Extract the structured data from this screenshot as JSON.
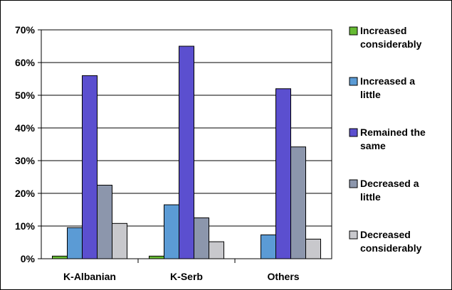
{
  "chart_data": {
    "type": "bar",
    "categories": [
      "K-Albanian",
      "K-Serb",
      "Others"
    ],
    "series": [
      {
        "name": "Increased considerably",
        "values": [
          0.8,
          0.8,
          0
        ],
        "color": "#66bb33"
      },
      {
        "name": "Increased a little",
        "values": [
          9.5,
          16.5,
          7.3
        ],
        "color": "#5b9bd5"
      },
      {
        "name": "Remained the same",
        "values": [
          56,
          65,
          52
        ],
        "color": "#5b4fcf"
      },
      {
        "name": "Decreased a little",
        "values": [
          22.5,
          12.5,
          34.2
        ],
        "color": "#8c96ac"
      },
      {
        "name": "Decreased considerably",
        "values": [
          10.8,
          5.2,
          6
        ],
        "color": "#c8c8cc"
      }
    ],
    "y_ticks": [
      "0%",
      "10%",
      "20%",
      "30%",
      "40%",
      "50%",
      "60%",
      "70%"
    ],
    "ylim": [
      0,
      70
    ],
    "grid": true,
    "legend_position": "right",
    "legend_entries": [
      [
        "Increased",
        "considerably"
      ],
      [
        "Increased a",
        "little"
      ],
      [
        "Remained the",
        "same"
      ],
      [
        "Decreased a",
        "little"
      ],
      [
        "Decreased",
        "considerably"
      ]
    ]
  }
}
